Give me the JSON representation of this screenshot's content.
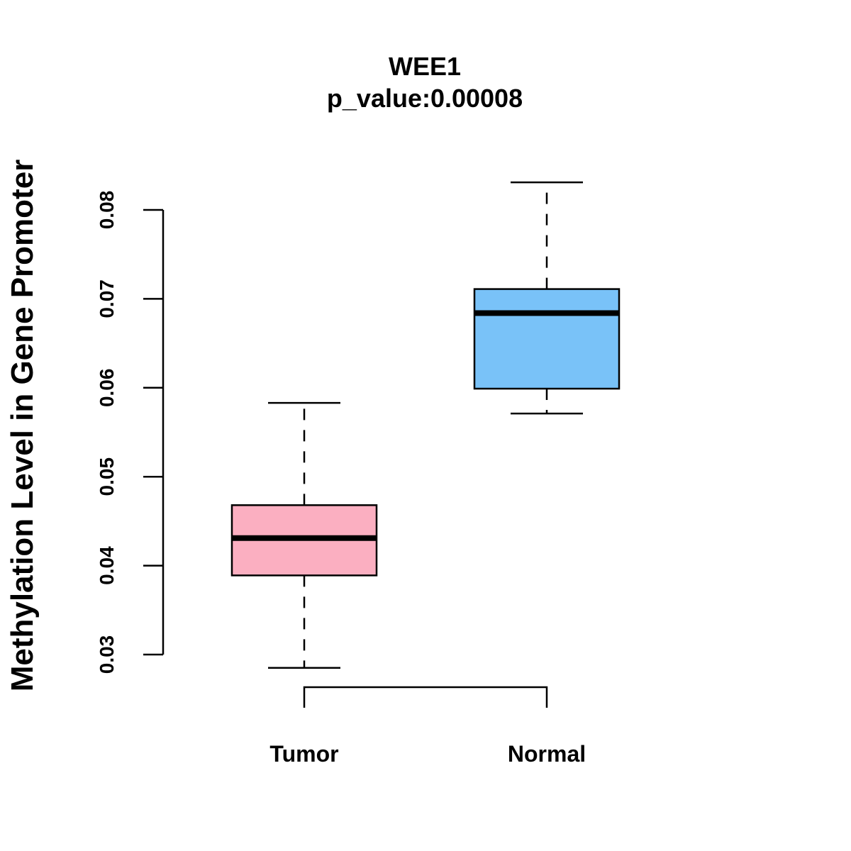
{
  "chart_data": {
    "type": "boxplot",
    "title": "WEE1",
    "subtitle": "p_value:0.00008",
    "xlabel": "",
    "ylabel": "Methylation Level in Gene Promoter",
    "ylim": [
      0.03,
      0.08
    ],
    "yticks": [
      "0.03",
      "0.04",
      "0.05",
      "0.06",
      "0.07",
      "0.08"
    ],
    "grid": false,
    "categories": [
      "Tumor",
      "Normal"
    ],
    "boxes": [
      {
        "name": "Tumor",
        "min": 0.0285,
        "q1": 0.0389,
        "median": 0.0431,
        "q3": 0.0468,
        "max": 0.0583,
        "color": "#FBAFC1"
      },
      {
        "name": "Normal",
        "min": 0.0571,
        "q1": 0.0599,
        "median": 0.0684,
        "q3": 0.0711,
        "max": 0.0831,
        "color": "#79C2F8"
      }
    ],
    "comparison_bracket": [
      "Tumor",
      "Normal"
    ]
  }
}
